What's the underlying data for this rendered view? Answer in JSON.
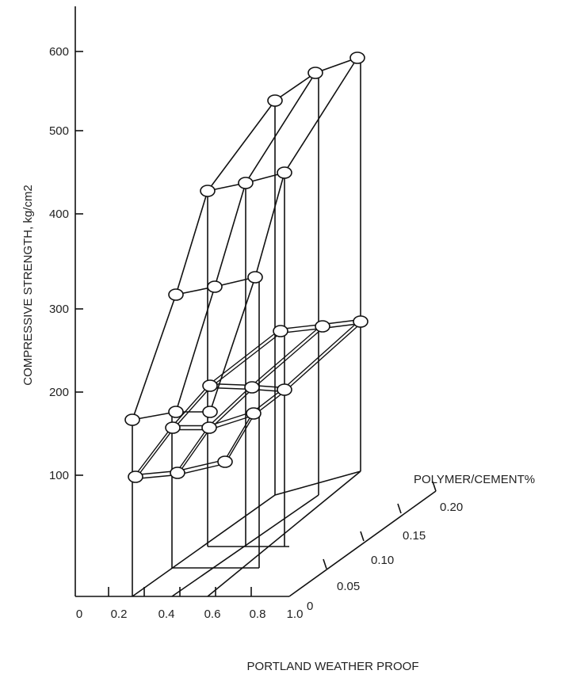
{
  "chart_data": {
    "type": "3d-line",
    "title": "",
    "ylabel": "COMPRESSIVE STRENGTH, kg/cm2",
    "xlabel": "PORTLAND   WEATHER PROOF",
    "zlabel": "POLYMER/CEMENT%",
    "x_ticks": [
      "0",
      "0.2",
      "0.4",
      "0.6",
      "0.8",
      "1.0"
    ],
    "y_ticks": [
      "100",
      "200",
      "300",
      "400",
      "500",
      "600"
    ],
    "z_ticks": [
      "0",
      "0.05",
      "0.10",
      "0.15",
      "0.20"
    ],
    "ylim": [
      0,
      650
    ],
    "x": [
      0.2,
      0.4,
      0.6
    ],
    "z": [
      0,
      0.05,
      0.1,
      0.15,
      0.2
    ],
    "series": [
      {
        "values": [
          [
            100,
            105,
            120
          ],
          [
            150,
            155,
            160
          ],
          [
            175,
            200,
            200
          ],
          [
            240,
            260,
            270
          ],
          [
            245,
            265,
            270
          ]
        ]
      },
      {
        "values": [
          [
            165,
            180,
            180
          ],
          [
            300,
            310,
            320
          ],
          [
            425,
            435,
            445
          ],
          [
            540,
            570,
            590
          ],
          [
            540,
            570,
            590
          ]
        ]
      }
    ]
  }
}
